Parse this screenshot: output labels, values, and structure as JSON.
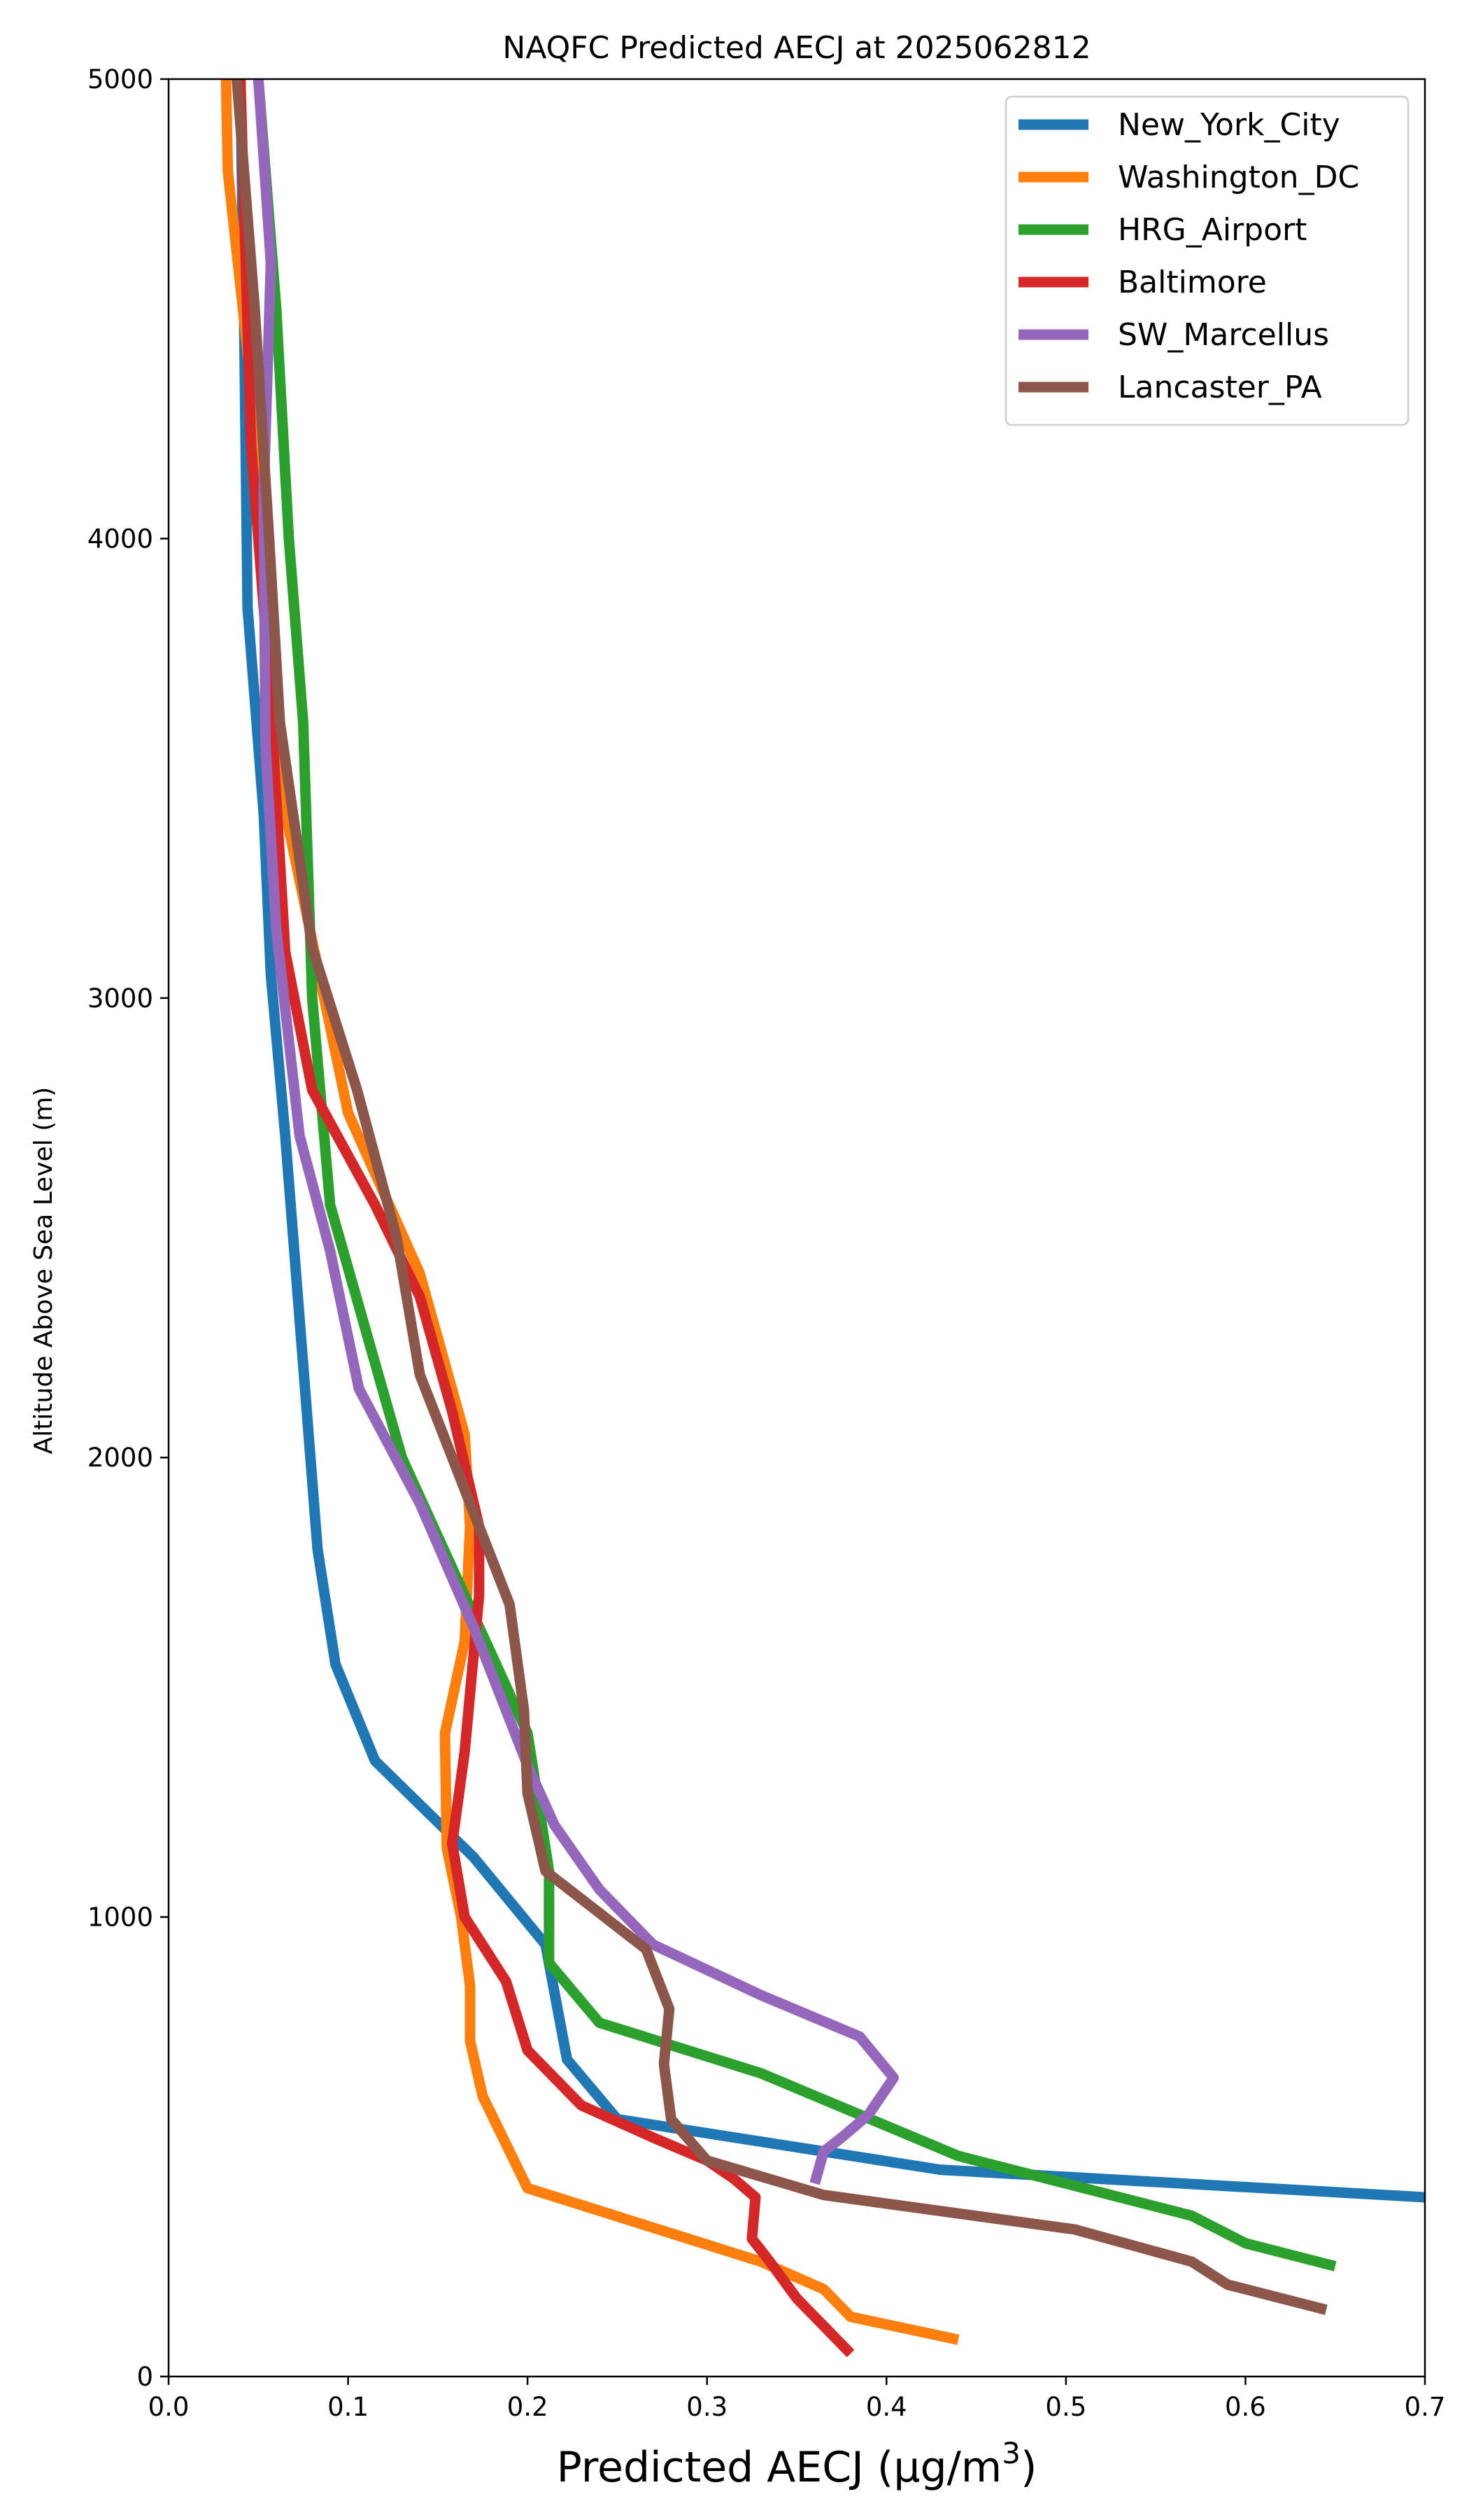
{
  "chart_data": {
    "type": "line",
    "title": "NAQFC Predicted AECJ at 2025062812",
    "xlabel": "Predicted AECJ (μg/m",
    "xlabel_sup": "3",
    "xlabel_end": ")",
    "ylabel": "Altitude Above Sea Level (m)",
    "xlim": [
      0.0,
      0.7
    ],
    "ylim": [
      0,
      5000
    ],
    "xticks": [
      "0.0",
      "0.1",
      "0.2",
      "0.3",
      "0.4",
      "0.5",
      "0.6",
      "0.7"
    ],
    "yticks": [
      "0",
      "1000",
      "2000",
      "3000",
      "4000",
      "5000"
    ],
    "grid": false,
    "legend_position": "top-right",
    "series": [
      {
        "name": "New_York_City",
        "color": "#1f77b4",
        "points": [
          [
            0.7,
            390
          ],
          [
            0.43,
            450
          ],
          [
            0.25,
            560
          ],
          [
            0.222,
            690
          ],
          [
            0.21,
            940
          ],
          [
            0.17,
            1130
          ],
          [
            0.115,
            1340
          ],
          [
            0.093,
            1550
          ],
          [
            0.083,
            1800
          ],
          [
            0.077,
            2100
          ],
          [
            0.071,
            2400
          ],
          [
            0.065,
            2700
          ],
          [
            0.057,
            3050
          ],
          [
            0.053,
            3400
          ],
          [
            0.044,
            3850
          ],
          [
            0.042,
            4500
          ],
          [
            0.04,
            5000
          ]
        ]
      },
      {
        "name": "Washington_DC",
        "color": "#ff7f0e",
        "points": [
          [
            0.44,
            80
          ],
          [
            0.38,
            130
          ],
          [
            0.365,
            190
          ],
          [
            0.33,
            250
          ],
          [
            0.2,
            410
          ],
          [
            0.175,
            610
          ],
          [
            0.168,
            730
          ],
          [
            0.168,
            850
          ],
          [
            0.163,
            1000
          ],
          [
            0.155,
            1150
          ],
          [
            0.154,
            1400
          ],
          [
            0.165,
            1600
          ],
          [
            0.168,
            1850
          ],
          [
            0.165,
            2050
          ],
          [
            0.14,
            2400
          ],
          [
            0.1,
            2750
          ],
          [
            0.06,
            3500
          ],
          [
            0.047,
            4300
          ],
          [
            0.033,
            4800
          ],
          [
            0.032,
            5000
          ]
        ]
      },
      {
        "name": "HRG_Airport",
        "color": "#2ca02c",
        "points": [
          [
            0.65,
            240
          ],
          [
            0.6,
            290
          ],
          [
            0.57,
            350
          ],
          [
            0.5,
            420
          ],
          [
            0.44,
            480
          ],
          [
            0.33,
            660
          ],
          [
            0.24,
            770
          ],
          [
            0.212,
            900
          ],
          [
            0.212,
            1100
          ],
          [
            0.2,
            1400
          ],
          [
            0.13,
            2000
          ],
          [
            0.09,
            2550
          ],
          [
            0.08,
            3000
          ],
          [
            0.075,
            3600
          ],
          [
            0.067,
            4000
          ],
          [
            0.06,
            4500
          ],
          [
            0.05,
            5000
          ]
        ]
      },
      {
        "name": "Baltimore",
        "color": "#d62728",
        "points": [
          [
            0.38,
            50
          ],
          [
            0.365,
            110
          ],
          [
            0.35,
            170
          ],
          [
            0.335,
            250
          ],
          [
            0.325,
            300
          ],
          [
            0.327,
            390
          ],
          [
            0.315,
            430
          ],
          [
            0.3,
            470
          ],
          [
            0.27,
            520
          ],
          [
            0.23,
            590
          ],
          [
            0.2,
            710
          ],
          [
            0.188,
            860
          ],
          [
            0.165,
            1000
          ],
          [
            0.158,
            1160
          ],
          [
            0.165,
            1360
          ],
          [
            0.173,
            1700
          ],
          [
            0.173,
            1850
          ],
          [
            0.158,
            2100
          ],
          [
            0.14,
            2350
          ],
          [
            0.115,
            2550
          ],
          [
            0.08,
            2800
          ],
          [
            0.065,
            3100
          ],
          [
            0.056,
            3700
          ],
          [
            0.046,
            4200
          ],
          [
            0.043,
            4600
          ],
          [
            0.04,
            5000
          ]
        ]
      },
      {
        "name": "SW_Marcellus",
        "color": "#9467bd",
        "points": [
          [
            0.36,
            420
          ],
          [
            0.365,
            490
          ],
          [
            0.375,
            520
          ],
          [
            0.39,
            570
          ],
          [
            0.404,
            650
          ],
          [
            0.385,
            740
          ],
          [
            0.33,
            830
          ],
          [
            0.27,
            940
          ],
          [
            0.24,
            1060
          ],
          [
            0.215,
            1200
          ],
          [
            0.2,
            1330
          ],
          [
            0.17,
            1630
          ],
          [
            0.14,
            1900
          ],
          [
            0.106,
            2150
          ],
          [
            0.09,
            2450
          ],
          [
            0.073,
            2700
          ],
          [
            0.06,
            3150
          ],
          [
            0.054,
            3550
          ],
          [
            0.053,
            4100
          ],
          [
            0.057,
            4600
          ],
          [
            0.05,
            5000
          ]
        ]
      },
      {
        "name": "Lancaster_PA",
        "color": "#8c564b",
        "points": [
          [
            0.645,
            145
          ],
          [
            0.59,
            200
          ],
          [
            0.57,
            250
          ],
          [
            0.505,
            320
          ],
          [
            0.365,
            395
          ],
          [
            0.3,
            470
          ],
          [
            0.28,
            560
          ],
          [
            0.276,
            680
          ],
          [
            0.279,
            800
          ],
          [
            0.266,
            930
          ],
          [
            0.21,
            1100
          ],
          [
            0.2,
            1270
          ],
          [
            0.198,
            1450
          ],
          [
            0.19,
            1680
          ],
          [
            0.14,
            2180
          ],
          [
            0.127,
            2480
          ],
          [
            0.105,
            2800
          ],
          [
            0.08,
            3110
          ],
          [
            0.062,
            3600
          ],
          [
            0.056,
            4000
          ],
          [
            0.048,
            4500
          ],
          [
            0.038,
            5000
          ]
        ]
      }
    ]
  }
}
